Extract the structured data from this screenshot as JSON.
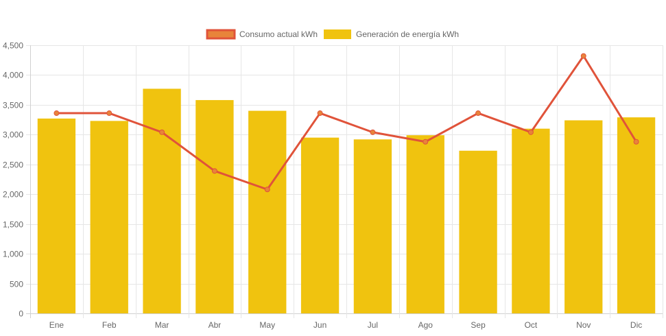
{
  "chart_data": {
    "type": "bar",
    "categories": [
      "Ene",
      "Feb",
      "Mar",
      "Abr",
      "May",
      "Jun",
      "Jul",
      "Ago",
      "Sep",
      "Oct",
      "Nov",
      "Dic"
    ],
    "series": [
      {
        "name": "Consumo actual kWh",
        "type": "line",
        "color": "#e0533a",
        "point_color": "#e8843a",
        "values": [
          3360,
          3360,
          3040,
          2390,
          2080,
          3360,
          3040,
          2880,
          3360,
          3040,
          4320,
          2880
        ]
      },
      {
        "name": "Generación de energía kWh",
        "type": "bar",
        "color": "#f0c30f",
        "values": [
          3270,
          3230,
          3770,
          3580,
          3400,
          2950,
          2920,
          2990,
          2730,
          3100,
          3240,
          3290
        ]
      }
    ],
    "y_ticks": [
      "0",
      "500",
      "1,000",
      "1,500",
      "2,000",
      "2,500",
      "3,000",
      "3,500",
      "4,000",
      "4,500"
    ],
    "ylim": [
      0,
      4500
    ],
    "title": "",
    "xlabel": "",
    "ylabel": "",
    "grid": true,
    "legend_position": "top-center"
  }
}
